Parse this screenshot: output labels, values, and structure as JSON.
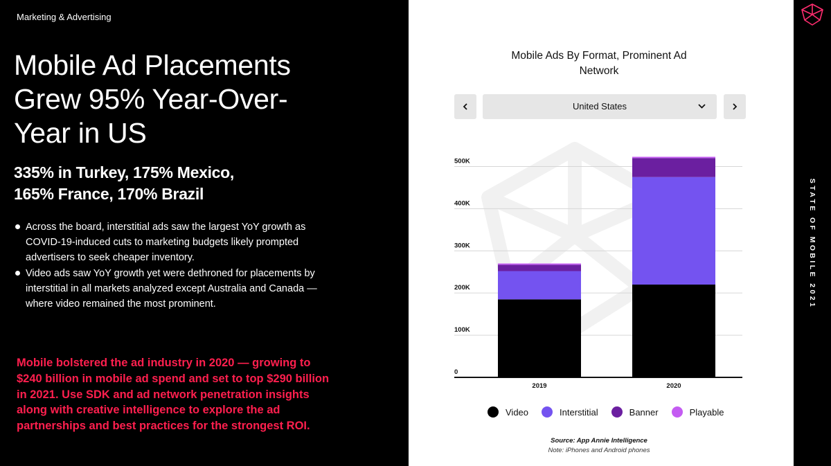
{
  "category": "Marketing & Advertising",
  "headline": "Mobile Ad Placements Grew 95% Year-Over-Year in US",
  "subhead": {
    "line1": "335% in Turkey, 175% Mexico,",
    "line2": "165% France, 170% Brazil"
  },
  "bullets": [
    "Across the board, interstitial ads saw the largest YoY growth as COVID-19-induced cuts to marketing budgets likely prompted advertisers to seek cheaper inventory.",
    "Video ads saw YoY growth yet were dethroned for placements by interstitial in all markets analyzed except Australia and Canada — where video remained the most prominent."
  ],
  "callout": "Mobile bolstered the ad industry in 2020 — growing to $240 billion in mobile ad spend and set to top $290 billion in 2021. Use SDK and ad network penetration insights along with creative intelligence to explore the ad partnerships and best practices for the strongest ROI.",
  "chart": {
    "title": "Mobile Ads By Format, Prominent Ad Network",
    "country_selector": {
      "selected": "United States"
    },
    "source": "Source: App Annie Intelligence",
    "note": "Note: iPhones and Android phones"
  },
  "sidebar": {
    "vertical_title": "STATE OF MOBILE 2021"
  },
  "colors": {
    "accent": "#ff1f4e",
    "video": "#000000",
    "interstitial": "#7453f0",
    "banner": "#6b1fa0",
    "playable": "#c45cf2"
  },
  "chart_data": {
    "type": "bar",
    "stacked": true,
    "title": "Mobile Ads By Format, Prominent Ad Network",
    "categories": [
      "2019",
      "2020"
    ],
    "series": [
      {
        "name": "Video",
        "values": [
          185000,
          220000
        ]
      },
      {
        "name": "Interstitial",
        "values": [
          67000,
          255000
        ]
      },
      {
        "name": "Banner",
        "values": [
          15000,
          45000
        ]
      },
      {
        "name": "Playable",
        "values": [
          3000,
          3000
        ]
      }
    ],
    "ylim": [
      0,
      550000
    ],
    "y_ticks": [
      0,
      100000,
      200000,
      300000,
      400000,
      500000
    ],
    "y_tick_labels": [
      "0",
      "100K",
      "200K",
      "300K",
      "400K",
      "500K"
    ],
    "grid": true,
    "legend": "bottom"
  }
}
